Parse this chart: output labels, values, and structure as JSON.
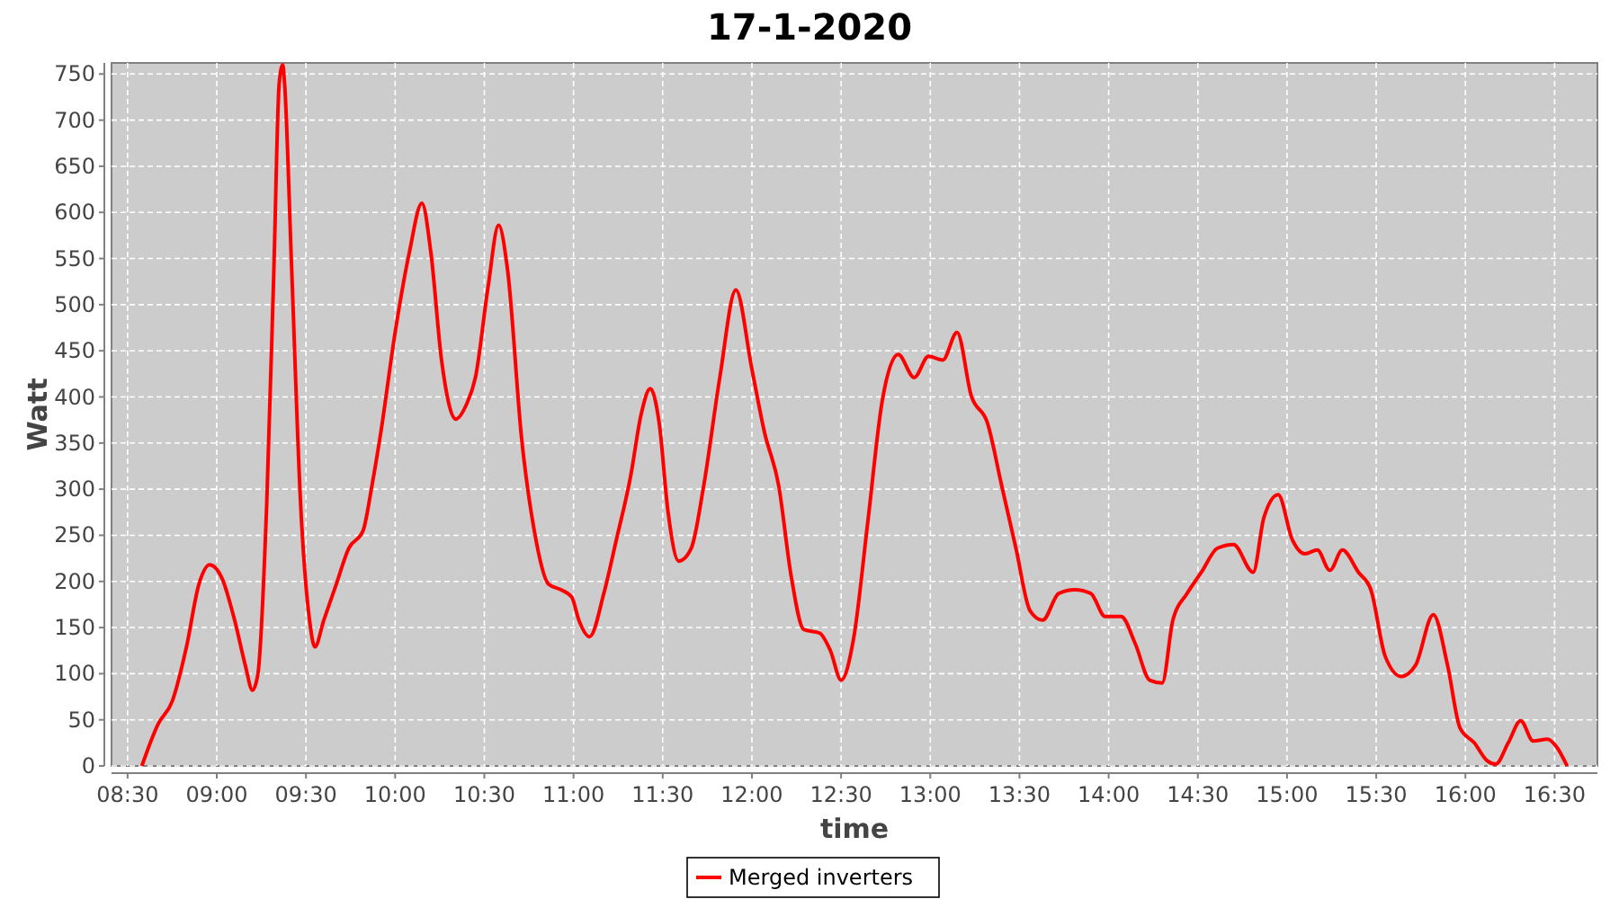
{
  "chart_data": {
    "type": "line",
    "title": "17-1-2020",
    "xlabel": "time",
    "ylabel": "Watt",
    "xlim": [
      8.41,
      16.74
    ],
    "ylim": [
      0,
      762
    ],
    "xticks": [
      {
        "value": 8.5,
        "label": "08:30"
      },
      {
        "value": 9,
        "label": "09:00"
      },
      {
        "value": 9.5,
        "label": "09:30"
      },
      {
        "value": 10,
        "label": "10:00"
      },
      {
        "value": 10.5,
        "label": "10:30"
      },
      {
        "value": 11,
        "label": "11:00"
      },
      {
        "value": 11.5,
        "label": "11:30"
      },
      {
        "value": 12,
        "label": "12:00"
      },
      {
        "value": 12.5,
        "label": "12:30"
      },
      {
        "value": 13,
        "label": "13:00"
      },
      {
        "value": 13.5,
        "label": "13:30"
      },
      {
        "value": 14,
        "label": "14:00"
      },
      {
        "value": 14.5,
        "label": "14:30"
      },
      {
        "value": 15,
        "label": "15:00"
      },
      {
        "value": 15.5,
        "label": "15:30"
      },
      {
        "value": 16,
        "label": "16:00"
      },
      {
        "value": 16.5,
        "label": "16:30"
      }
    ],
    "yticks": [
      0,
      50,
      100,
      150,
      200,
      250,
      300,
      350,
      400,
      450,
      500,
      550,
      600,
      650,
      700,
      750
    ],
    "grid": true,
    "legend": "bottom",
    "marker": "none",
    "line_style": "solid",
    "series": [
      {
        "name": "Merged inverters",
        "color": "#ff0000",
        "x": [
          8.58,
          8.67,
          8.75,
          8.83,
          8.9,
          8.96,
          9.03,
          9.1,
          9.16,
          9.2,
          9.23,
          9.28,
          9.32,
          9.35,
          9.37,
          9.38,
          9.42,
          9.47,
          9.52,
          9.55,
          9.6,
          9.67,
          9.74,
          9.82,
          9.87,
          9.92,
          10.0,
          10.08,
          10.15,
          10.2,
          10.26,
          10.34,
          10.4,
          10.45,
          10.52,
          10.58,
          10.63,
          10.71,
          10.78,
          10.86,
          10.93,
          10.99,
          11.03,
          11.09,
          11.17,
          11.24,
          11.32,
          11.38,
          11.43,
          11.48,
          11.53,
          11.59,
          11.66,
          11.73,
          11.82,
          11.91,
          12.0,
          12.07,
          12.15,
          12.22,
          12.29,
          12.38,
          12.44,
          12.5,
          12.57,
          12.65,
          12.73,
          12.82,
          12.91,
          12.99,
          13.07,
          13.15,
          13.23,
          13.32,
          13.4,
          13.48,
          13.56,
          13.63,
          13.72,
          13.81,
          13.9,
          13.98,
          14.07,
          14.15,
          14.23,
          14.3,
          14.36,
          14.44,
          14.52,
          14.61,
          14.7,
          14.81,
          14.87,
          14.95,
          15.03,
          15.1,
          15.17,
          15.24,
          15.31,
          15.4,
          15.47,
          15.55,
          15.64,
          15.72,
          15.82,
          15.9,
          15.97,
          16.05,
          16.12,
          16.17,
          16.24,
          16.31,
          16.38,
          16.46,
          16.51,
          16.57
        ],
        "values": [
          0,
          45,
          70,
          129,
          197,
          218,
          203,
          158,
          109,
          82,
          99,
          284,
          538,
          740,
          760,
          740,
          538,
          284,
          158,
          129,
          158,
          197,
          236,
          255,
          304,
          362,
          470,
          557,
          610,
          557,
          440,
          376,
          392,
          421,
          518,
          586,
          538,
          353,
          255,
          197,
          191,
          183,
          158,
          140,
          187,
          245,
          314,
          382,
          409,
          372,
          275,
          222,
          236,
          304,
          421,
          516,
          430,
          362,
          304,
          206,
          148,
          144,
          125,
          93,
          138,
          265,
          395,
          446,
          421,
          444,
          440,
          470,
          401,
          372,
          304,
          236,
          168,
          158,
          187,
          191,
          187,
          162,
          162,
          132,
          93,
          90,
          158,
          187,
          210,
          236,
          240,
          210,
          269,
          294,
          245,
          230,
          234,
          212,
          234,
          210,
          191,
          119,
          97,
          109,
          164,
          109,
          41,
          25,
          6,
          2,
          25,
          49,
          27,
          29,
          21,
          0
        ]
      }
    ]
  }
}
